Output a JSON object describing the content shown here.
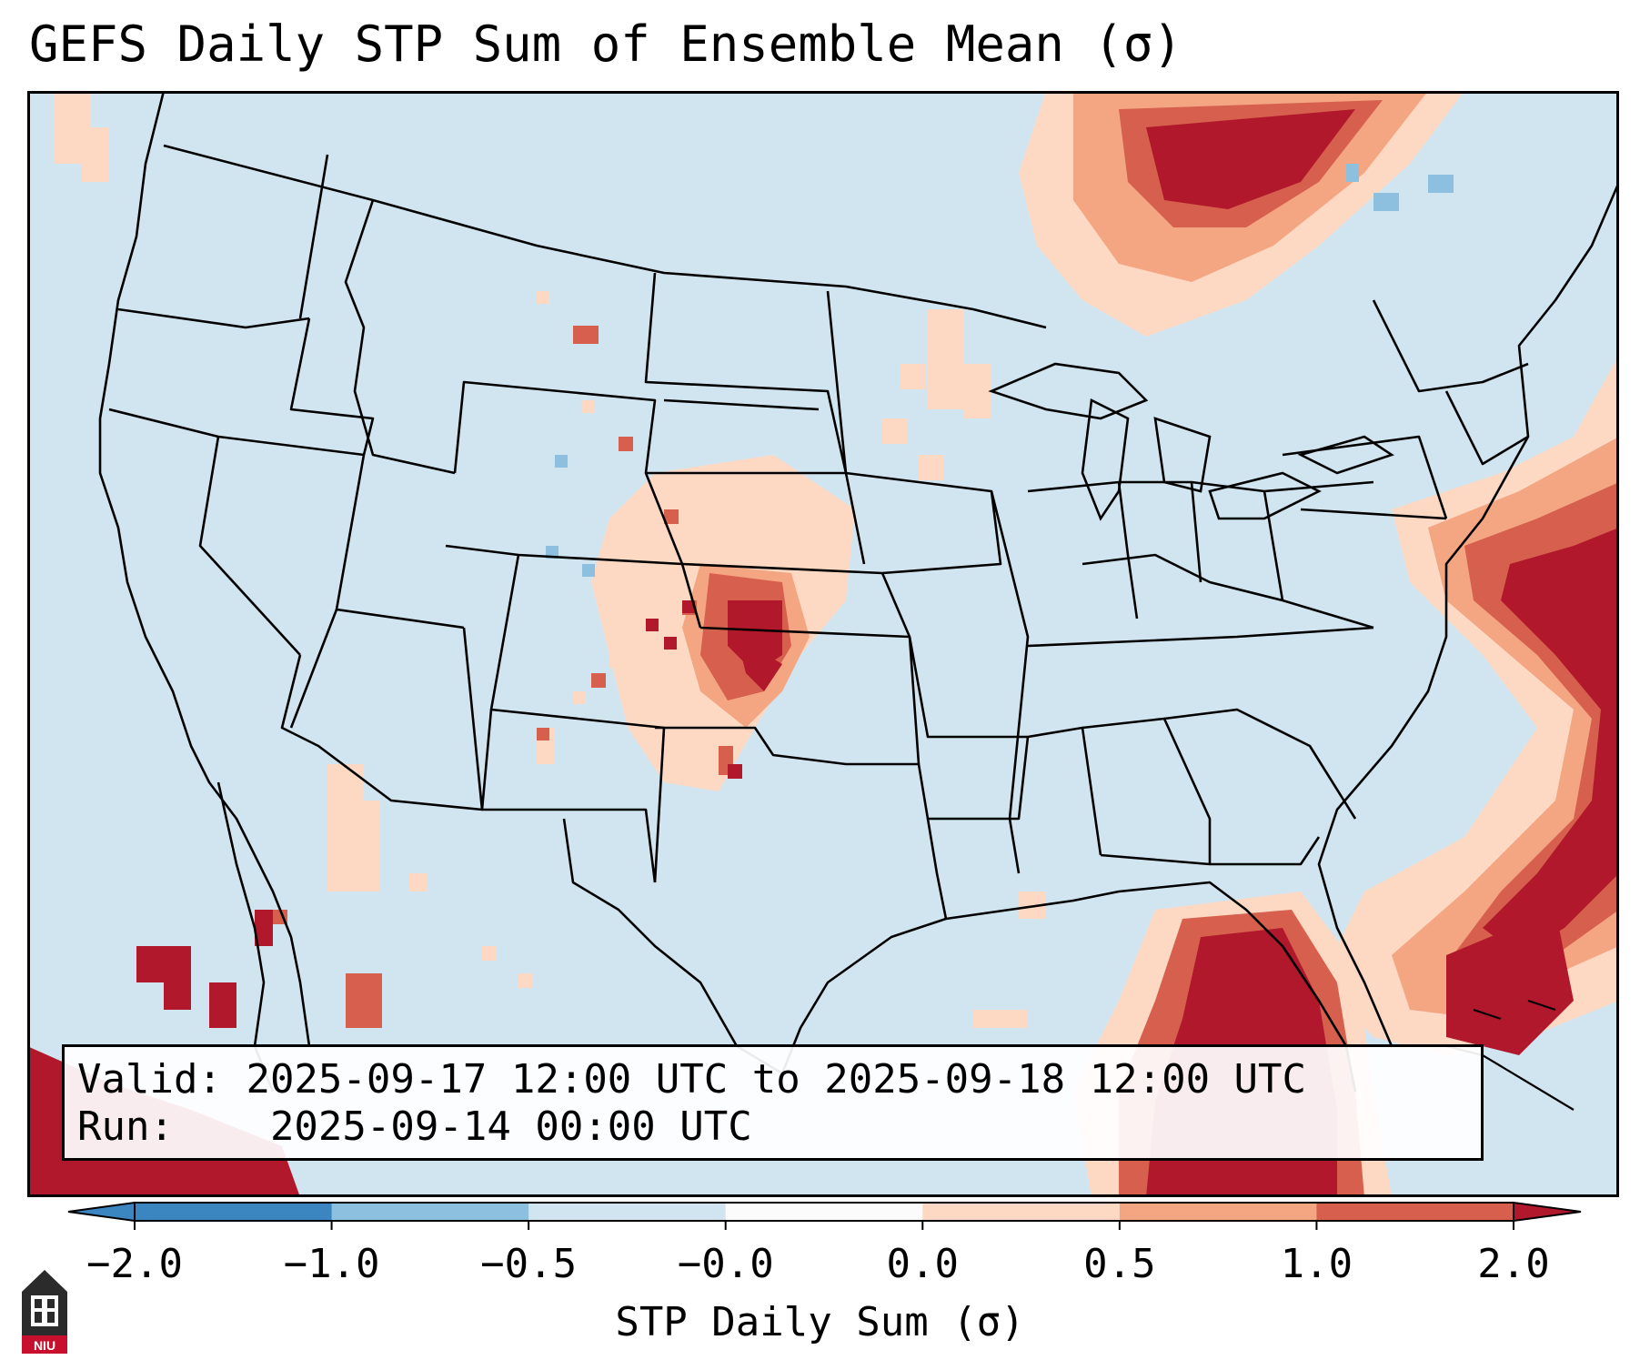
{
  "title": "GEFS Daily STP Sum of Ensemble Mean (σ)",
  "info": {
    "valid_label": "Valid:",
    "valid_value": "2025-09-17 12:00 UTC to 2025-09-18 12:00 UTC",
    "run_label": "Run:",
    "run_value": "2025-09-14 00:00 UTC"
  },
  "colorbar": {
    "label": "STP Daily Sum (σ)",
    "ticks": [
      "−2.0",
      "−1.0",
      "−0.5",
      "−0.0",
      "0.0",
      "0.5",
      "1.0",
      "2.0"
    ],
    "colors": [
      "#3b85c0",
      "#8dc0df",
      "#d1e5f0",
      "#fbfbfb",
      "#fdd9c4",
      "#f4a582",
      "#d6604d",
      "#b2182b"
    ]
  },
  "logo": {
    "text": "NIU",
    "icon": "niu-university-logo-icon"
  },
  "colors": {
    "background": "#d1e5f0",
    "light_pink": "#fdd9c4",
    "salmon": "#f4a582",
    "red": "#d6604d",
    "dark_red": "#b2182b",
    "light_blue": "#8dc0df"
  }
}
